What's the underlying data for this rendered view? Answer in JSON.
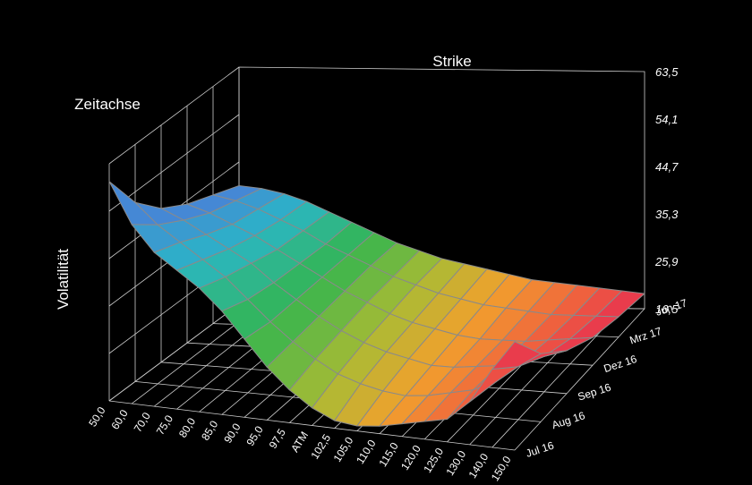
{
  "chart_data": {
    "type": "surface3d",
    "title": "",
    "axes": {
      "x_label": "Strike",
      "y_label": "Zeitachse",
      "z_label": "Volatilität"
    },
    "strikes": [
      "50,0",
      "60,0",
      "70,0",
      "75,0",
      "80,0",
      "85,0",
      "90,0",
      "95,0",
      "97,5",
      "ATM",
      "102,5",
      "105,0",
      "110,0",
      "115,0",
      "120,0",
      "125,0",
      "130,0",
      "140,0",
      "150,0"
    ],
    "expiries": [
      "Jul 16",
      "Aug 16",
      "Sep 16",
      "Dez 16",
      "Mrz 17",
      "Jun 17"
    ],
    "z_ticks": [
      "16,5",
      "25,9",
      "35,3",
      "44,7",
      "54,1",
      "63,5"
    ],
    "zlim": [
      16.5,
      63.5
    ],
    "values": [
      [
        60.0,
        52.0,
        47.0,
        44.0,
        41.0,
        37.0,
        32.0,
        27.0,
        23.0,
        20.0,
        18.0,
        17.5,
        18.0,
        19.0,
        20.0,
        21.0,
        25.0,
        32.0,
        38.0
      ],
      [
        52.0,
        48.0,
        45.0,
        42.0,
        39.0,
        35.0,
        31.0,
        27.5,
        24.5,
        22.0,
        20.5,
        19.5,
        19.0,
        19.5,
        20.5,
        21.5,
        23.5,
        27.0,
        30.0
      ],
      [
        47.0,
        45.0,
        42.5,
        40.0,
        37.5,
        34.0,
        31.0,
        28.0,
        25.5,
        23.5,
        22.0,
        21.0,
        20.0,
        20.0,
        20.5,
        21.0,
        22.0,
        23.5,
        25.0
      ],
      [
        44.0,
        42.5,
        40.5,
        38.5,
        36.0,
        33.5,
        31.0,
        28.5,
        26.5,
        24.5,
        23.0,
        22.0,
        21.0,
        20.5,
        20.5,
        20.5,
        21.0,
        21.5,
        22.0
      ],
      [
        42.0,
        41.0,
        39.5,
        37.5,
        35.5,
        33.0,
        31.0,
        29.0,
        27.0,
        25.5,
        24.0,
        23.0,
        22.0,
        21.5,
        21.0,
        20.5,
        20.5,
        20.5,
        20.5
      ],
      [
        40.0,
        39.5,
        38.5,
        37.0,
        35.0,
        33.0,
        31.0,
        29.0,
        27.5,
        26.0,
        25.0,
        24.0,
        23.0,
        22.0,
        21.5,
        21.0,
        20.5,
        20.0,
        19.5
      ]
    ],
    "color_scale": [
      "#4a7fd8",
      "#2ab6c6",
      "#33b54e",
      "#a9bb34",
      "#f1a12d",
      "#f06a3b",
      "#e8334f"
    ],
    "grid": true,
    "legend": "none"
  }
}
